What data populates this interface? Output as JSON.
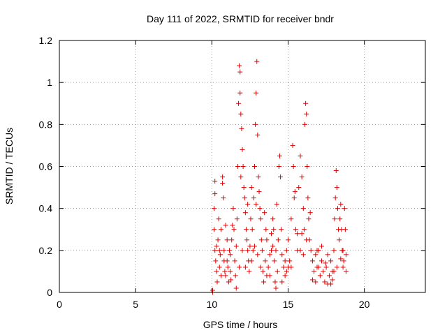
{
  "chart_data": {
    "type": "scatter",
    "title": "Day 111 of 2022, SRMTID for receiver bndr",
    "xlabel": "GPS time / hours",
    "ylabel": "SRMTID / TECUs",
    "xlim": [
      0,
      24
    ],
    "ylim": [
      0,
      1.2
    ],
    "xticks": [
      "0",
      "5",
      "10",
      "15",
      "20"
    ],
    "yticks": [
      "0",
      "0.2",
      "0.4",
      "0.6",
      "0.8",
      "1",
      "1.2"
    ],
    "grid": true,
    "marker": "+",
    "color": "#e00000",
    "points": [
      [
        10.05,
        0.0
      ],
      [
        10.05,
        0.01
      ],
      [
        10.2,
        0.53
      ],
      [
        10.2,
        0.47
      ],
      [
        10.15,
        0.4
      ],
      [
        10.15,
        0.3
      ],
      [
        10.2,
        0.2
      ],
      [
        10.25,
        0.15
      ],
      [
        10.3,
        0.1
      ],
      [
        10.35,
        0.05
      ],
      [
        10.4,
        0.25
      ],
      [
        10.45,
        0.35
      ],
      [
        10.5,
        0.12
      ],
      [
        10.55,
        0.18
      ],
      [
        10.6,
        0.3
      ],
      [
        10.7,
        0.55
      ],
      [
        10.7,
        0.52
      ],
      [
        10.75,
        0.45
      ],
      [
        10.8,
        0.2
      ],
      [
        10.85,
        0.1
      ],
      [
        10.9,
        0.08
      ],
      [
        11.0,
        0.15
      ],
      [
        11.05,
        0.12
      ],
      [
        11.1,
        0.05
      ],
      [
        11.15,
        0.2
      ],
      [
        11.2,
        0.1
      ],
      [
        11.25,
        0.06
      ],
      [
        11.3,
        0.25
      ],
      [
        11.4,
        0.4
      ],
      [
        11.45,
        0.3
      ],
      [
        11.5,
        0.15
      ],
      [
        11.55,
        0.08
      ],
      [
        11.6,
        0.02
      ],
      [
        11.65,
        0.35
      ],
      [
        11.7,
        0.6
      ],
      [
        11.75,
        0.9
      ],
      [
        11.8,
        1.08
      ],
      [
        11.85,
        1.05
      ],
      [
        11.85,
        0.95
      ],
      [
        11.9,
        0.85
      ],
      [
        11.95,
        0.78
      ],
      [
        12.0,
        0.68
      ],
      [
        12.05,
        0.6
      ],
      [
        12.1,
        0.5
      ],
      [
        12.15,
        0.45
      ],
      [
        12.2,
        0.38
      ],
      [
        12.25,
        0.3
      ],
      [
        12.3,
        0.25
      ],
      [
        12.35,
        0.2
      ],
      [
        12.4,
        0.15
      ],
      [
        12.45,
        0.1
      ],
      [
        12.5,
        0.22
      ],
      [
        12.55,
        0.35
      ],
      [
        12.6,
        0.5
      ],
      [
        12.65,
        0.3
      ],
      [
        12.7,
        0.2
      ],
      [
        12.75,
        0.45
      ],
      [
        12.8,
        0.6
      ],
      [
        12.85,
        0.8
      ],
      [
        12.9,
        0.95
      ],
      [
        12.95,
        1.1
      ],
      [
        13.0,
        0.75
      ],
      [
        13.05,
        0.55
      ],
      [
        13.1,
        0.48
      ],
      [
        13.15,
        0.4
      ],
      [
        13.2,
        0.35
      ],
      [
        13.25,
        0.25
      ],
      [
        13.3,
        0.2
      ],
      [
        13.35,
        0.1
      ],
      [
        13.4,
        0.05
      ],
      [
        13.5,
        0.15
      ],
      [
        13.55,
        0.3
      ],
      [
        13.6,
        0.25
      ],
      [
        13.7,
        0.12
      ],
      [
        13.8,
        0.08
      ],
      [
        13.9,
        0.2
      ],
      [
        14.0,
        0.35
      ],
      [
        14.05,
        0.3
      ],
      [
        14.1,
        0.15
      ],
      [
        14.15,
        0.05
      ],
      [
        14.2,
        0.02
      ],
      [
        14.3,
        0.1
      ],
      [
        14.35,
        0.25
      ],
      [
        14.4,
        0.6
      ],
      [
        14.45,
        0.65
      ],
      [
        14.5,
        0.55
      ],
      [
        14.55,
        0.3
      ],
      [
        14.6,
        0.18
      ],
      [
        14.7,
        0.12
      ],
      [
        14.8,
        0.08
      ],
      [
        14.9,
        0.2
      ],
      [
        15.0,
        0.25
      ],
      [
        15.1,
        0.15
      ],
      [
        15.2,
        0.35
      ],
      [
        15.3,
        0.7
      ],
      [
        15.35,
        0.6
      ],
      [
        15.4,
        0.45
      ],
      [
        15.5,
        0.3
      ],
      [
        15.6,
        0.2
      ],
      [
        15.7,
        0.5
      ],
      [
        15.8,
        0.65
      ],
      [
        15.9,
        0.55
      ],
      [
        16.0,
        0.4
      ],
      [
        16.05,
        0.3
      ],
      [
        16.1,
        0.8
      ],
      [
        16.15,
        0.9
      ],
      [
        16.2,
        0.85
      ],
      [
        16.25,
        0.6
      ],
      [
        16.3,
        0.45
      ],
      [
        16.35,
        0.35
      ],
      [
        16.4,
        0.25
      ],
      [
        16.5,
        0.2
      ],
      [
        16.6,
        0.15
      ],
      [
        16.7,
        0.1
      ],
      [
        16.8,
        0.05
      ],
      [
        16.9,
        0.12
      ],
      [
        17.0,
        0.2
      ],
      [
        17.1,
        0.08
      ],
      [
        17.2,
        0.15
      ],
      [
        17.3,
        0.1
      ],
      [
        17.4,
        0.05
      ],
      [
        17.5,
        0.12
      ],
      [
        17.6,
        0.18
      ],
      [
        17.7,
        0.08
      ],
      [
        17.8,
        0.04
      ],
      [
        17.9,
        0.1
      ],
      [
        18.0,
        0.2
      ],
      [
        18.05,
        0.35
      ],
      [
        18.1,
        0.45
      ],
      [
        18.15,
        0.58
      ],
      [
        18.2,
        0.5
      ],
      [
        18.25,
        0.4
      ],
      [
        18.3,
        0.3
      ],
      [
        18.35,
        0.25
      ],
      [
        18.4,
        0.35
      ],
      [
        18.45,
        0.42
      ],
      [
        18.5,
        0.3
      ],
      [
        18.55,
        0.2
      ],
      [
        18.6,
        0.12
      ],
      [
        18.65,
        0.15
      ],
      [
        10.5,
        0.2
      ],
      [
        10.8,
        0.15
      ],
      [
        11.2,
        0.18
      ],
      [
        11.6,
        0.22
      ],
      [
        12.2,
        0.12
      ],
      [
        12.6,
        0.15
      ],
      [
        13.2,
        0.12
      ],
      [
        13.8,
        0.18
      ],
      [
        14.2,
        0.2
      ],
      [
        14.8,
        0.15
      ],
      [
        15.2,
        0.12
      ],
      [
        15.8,
        0.2
      ],
      [
        16.2,
        0.25
      ],
      [
        16.8,
        0.18
      ],
      [
        17.2,
        0.22
      ],
      [
        17.8,
        0.15
      ],
      [
        18.2,
        0.12
      ],
      [
        10.3,
        0.22
      ],
      [
        11.0,
        0.25
      ],
      [
        12.0,
        0.2
      ],
      [
        13.0,
        0.18
      ],
      [
        14.0,
        0.22
      ],
      [
        15.0,
        0.12
      ],
      [
        16.0,
        0.18
      ],
      [
        17.0,
        0.12
      ],
      [
        18.0,
        0.1
      ],
      [
        10.6,
        0.08
      ],
      [
        11.8,
        0.12
      ],
      [
        12.8,
        0.22
      ],
      [
        13.6,
        0.08
      ],
      [
        14.6,
        0.05
      ],
      [
        15.6,
        0.28
      ],
      [
        16.6,
        0.06
      ],
      [
        17.6,
        0.04
      ],
      [
        18.6,
        0.2
      ],
      [
        11.35,
        0.32
      ],
      [
        12.35,
        0.42
      ],
      [
        13.45,
        0.38
      ],
      [
        14.25,
        0.42
      ],
      [
        15.45,
        0.48
      ],
      [
        16.45,
        0.38
      ],
      [
        17.45,
        0.14
      ],
      [
        18.45,
        0.16
      ],
      [
        10.9,
        0.32
      ],
      [
        11.9,
        0.55
      ],
      [
        12.9,
        0.42
      ],
      [
        13.9,
        0.28
      ],
      [
        14.9,
        0.1
      ],
      [
        15.9,
        0.28
      ],
      [
        16.9,
        0.2
      ],
      [
        17.9,
        0.06
      ],
      [
        18.7,
        0.4
      ],
      [
        18.75,
        0.3
      ],
      [
        18.8,
        0.18
      ],
      [
        18.8,
        0.1
      ]
    ]
  }
}
